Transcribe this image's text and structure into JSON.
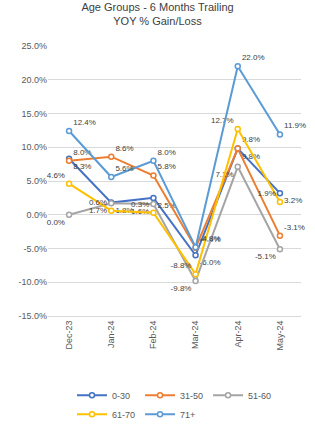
{
  "chart_data": {
    "type": "line",
    "title": "Age Groups - 6 Months Trailing",
    "subtitle": "YOY % Gain/Loss",
    "categories": [
      "Dec-23",
      "Jan-24",
      "Feb-24",
      "Mar-24",
      "Apr-24",
      "May-24"
    ],
    "series": [
      {
        "name": "0-30",
        "color": "#4472c4",
        "values": [
          8.3,
          1.8,
          2.5,
          -6.0,
          9.8,
          3.2
        ],
        "value_labels": [
          "8.3%",
          "1.8%",
          "2.5%",
          "-6.0%",
          "9.8%",
          "3.2%"
        ]
      },
      {
        "name": "31-50",
        "color": "#ed7d31",
        "values": [
          8.0,
          8.6,
          5.8,
          -4.9,
          9.8,
          -3.1
        ],
        "value_labels": [
          "8.0%",
          "8.6%",
          "5.8%",
          "-4.9%",
          "9.8%",
          "-3.1%"
        ]
      },
      {
        "name": "51-60",
        "color": "#a5a5a5",
        "values": [
          0.0,
          1.7,
          1.6,
          -9.8,
          7.1,
          -5.1
        ],
        "value_labels": [
          "0.0%",
          "1.7%",
          "1.6%",
          "-9.8%",
          "7.1%",
          "-5.1%"
        ]
      },
      {
        "name": "61-70",
        "color": "#ffc000",
        "values": [
          4.6,
          0.6,
          0.3,
          -8.8,
          12.7,
          1.9
        ],
        "value_labels": [
          "4.6%",
          "0.6%",
          "0.3%",
          "-8.8%",
          "12.7%",
          "1.9%"
        ]
      },
      {
        "name": "71+",
        "color": "#5b9bd5",
        "values": [
          12.4,
          5.6,
          8.0,
          -4.8,
          22.0,
          11.9
        ],
        "value_labels": [
          "12.4%",
          "5.6%",
          "8.0%",
          "-4.8%",
          "22.0%",
          "11.9%"
        ]
      }
    ],
    "ylim": [
      -15,
      25
    ],
    "yticks": [
      {
        "value": -15,
        "label": "-15.0%"
      },
      {
        "value": -10,
        "label": "-10.0%"
      },
      {
        "value": -5,
        "label": "-5.0%"
      },
      {
        "value": 0,
        "label": "0.0%"
      },
      {
        "value": 5,
        "label": "5.0%"
      },
      {
        "value": 10,
        "label": "10.0%"
      },
      {
        "value": 15,
        "label": "15.0%"
      },
      {
        "value": 20,
        "label": "20.0%"
      },
      {
        "value": 25,
        "label": "25.0%"
      }
    ],
    "grid": true,
    "legend": "bottom",
    "data_labels": true,
    "marker": "circle"
  }
}
